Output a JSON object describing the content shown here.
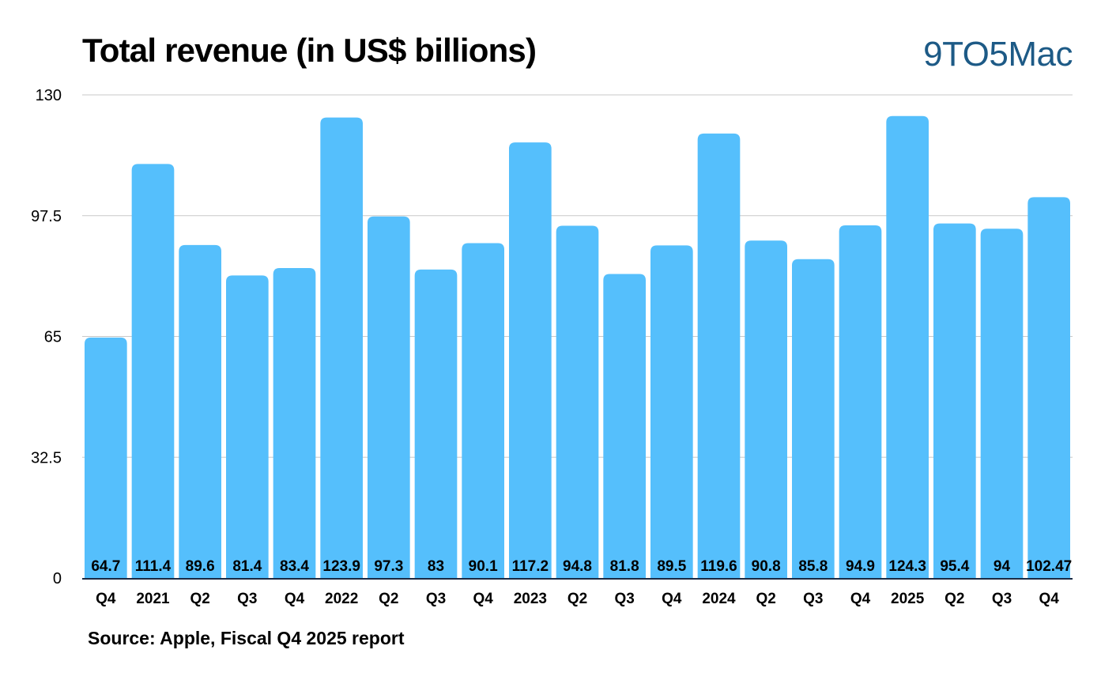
{
  "title": "Total revenue (in US$ billions)",
  "brand": "9TO5Mac",
  "source": "Source: Apple, Fiscal Q4 2025 report",
  "colors": {
    "bar": "#55bffc",
    "grid": "#c8c8c8",
    "axis": "#1a2a44",
    "brand": "#1d5a86"
  },
  "chart_data": {
    "type": "bar",
    "title": "Total revenue (in US$ billions)",
    "xlabel": "",
    "ylabel": "",
    "ylim": [
      0,
      130
    ],
    "yticks": [
      "0",
      "32.5",
      "65",
      "97.5",
      "130"
    ],
    "grid": true,
    "categories": [
      "Q4",
      "2021",
      "Q2",
      "Q3",
      "Q4",
      "2022",
      "Q2",
      "Q3",
      "Q4",
      "2023",
      "Q2",
      "Q3",
      "Q4",
      "2024",
      "Q2",
      "Q3",
      "Q4",
      "2025",
      "Q2",
      "Q3",
      "Q4"
    ],
    "values": [
      64.7,
      111.4,
      89.6,
      81.4,
      83.4,
      123.9,
      97.3,
      83,
      90.1,
      117.2,
      94.8,
      81.8,
      89.5,
      119.6,
      90.8,
      85.8,
      94.9,
      124.3,
      95.4,
      94,
      102.47
    ],
    "labels": [
      "64.7",
      "111.4",
      "89.6",
      "81.4",
      "83.4",
      "123.9",
      "97.3",
      "83",
      "90.1",
      "117.2",
      "94.8",
      "81.8",
      "89.5",
      "119.6",
      "90.8",
      "85.8",
      "94.9",
      "124.3",
      "95.4",
      "94",
      "102.47"
    ]
  }
}
